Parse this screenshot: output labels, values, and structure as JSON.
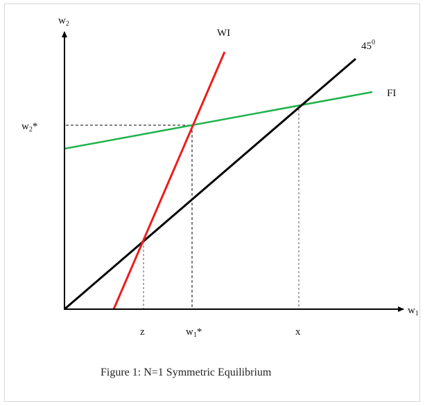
{
  "figure": {
    "caption": "Figure 1: N=1 Symmetric Equilibrium",
    "colors": {
      "axes": "#000000",
      "line_45": "#000000",
      "WI": "#ee1c1c",
      "FI": "#1fb24a",
      "guides": "#000000"
    },
    "axis_labels": {
      "y": {
        "base": "w",
        "sub": "2"
      },
      "x": {
        "base": "w",
        "sub": "1"
      }
    },
    "curve_labels": {
      "WI": "WI",
      "FI": "FI",
      "line_45": {
        "base": "45",
        "sup": "0"
      }
    },
    "x_ticks": {
      "z": "z",
      "w1_star": {
        "base": "w",
        "sub": "1",
        "after": "*"
      },
      "x": "x"
    },
    "y_ticks": {
      "w2_star": {
        "base": "w",
        "sub": "2",
        "after": "*"
      }
    }
  }
}
